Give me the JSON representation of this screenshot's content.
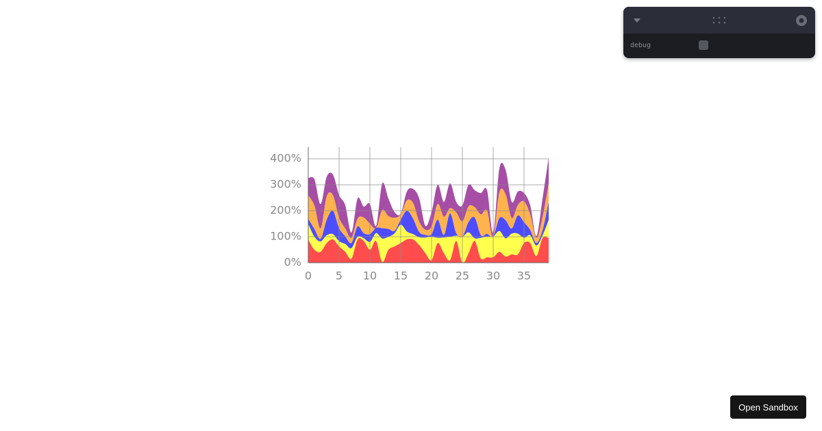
{
  "chart_data": {
    "type": "stacked-area",
    "x": [
      0,
      1,
      2,
      3,
      4,
      5,
      6,
      7,
      8,
      9,
      10,
      11,
      12,
      13,
      14,
      15,
      16,
      17,
      18,
      19,
      20,
      21,
      22,
      23,
      24,
      25,
      26,
      27,
      28,
      29,
      30,
      31,
      32,
      33,
      34,
      35,
      36,
      37,
      38,
      39
    ],
    "xlim": [
      0,
      39
    ],
    "xticks": [
      0,
      5,
      10,
      15,
      20,
      25,
      30,
      35
    ],
    "ylim": [
      0,
      445
    ],
    "yticks": [
      {
        "value": 0,
        "label": "0%"
      },
      {
        "value": 100,
        "label": "100%"
      },
      {
        "value": 200,
        "label": "200%"
      },
      {
        "value": 300,
        "label": "300%"
      },
      {
        "value": 400,
        "label": "400%"
      }
    ],
    "grid": true,
    "series": [
      {
        "color": "#ff4d4d",
        "values": [
          90,
          50,
          42,
          76,
          90,
          63,
          42,
          16,
          90,
          84,
          50,
          84,
          3,
          50,
          63,
          76,
          90,
          90,
          68,
          37,
          10,
          76,
          37,
          10,
          84,
          0,
          37,
          84,
          16,
          21,
          21,
          42,
          24,
          32,
          32,
          76,
          76,
          26,
          95,
          95
        ]
      },
      {
        "color": "#ffff4d",
        "values": [
          60,
          50,
          40,
          30,
          20,
          20,
          30,
          40,
          10,
          10,
          30,
          30,
          90,
          50,
          50,
          70,
          30,
          20,
          30,
          60,
          90,
          20,
          60,
          90,
          20,
          100,
          80,
          10,
          80,
          80,
          80,
          80,
          70,
          80,
          80,
          20,
          30,
          40,
          10,
          70
        ]
      },
      {
        "color": "#4d4dff",
        "values": [
          20,
          30,
          10,
          60,
          90,
          50,
          30,
          20,
          40,
          20,
          30,
          20,
          40,
          30,
          10,
          20,
          80,
          60,
          20,
          10,
          10,
          70,
          10,
          90,
          10,
          0,
          40,
          80,
          10,
          10,
          0,
          50,
          70,
          20,
          70,
          60,
          20,
          10,
          20,
          70
        ]
      },
      {
        "color": "#ffb34d",
        "values": [
          90,
          90,
          40,
          90,
          60,
          40,
          30,
          20,
          30,
          60,
          40,
          0,
          70,
          50,
          50,
          20,
          40,
          60,
          40,
          20,
          30,
          60,
          70,
          20,
          80,
          60,
          60,
          40,
          80,
          90,
          0,
          100,
          100,
          40,
          40,
          80,
          60,
          20,
          50,
          70
        ]
      },
      {
        "color": "#a64da6",
        "values": [
          66,
          101,
          94,
          75,
          79,
          87,
          89,
          20,
          77,
          42,
          76,
          8,
          102,
          67,
          22,
          3,
          34,
          54,
          89,
          15,
          55,
          74,
          57,
          95,
          40,
          61,
          83,
          65,
          82,
          78,
          15,
          91,
          94,
          62,
          52,
          32,
          35,
          7,
          72,
          100
        ]
      }
    ]
  },
  "panel": {
    "label": "debug"
  },
  "button": {
    "label": "Open Sandbox"
  }
}
